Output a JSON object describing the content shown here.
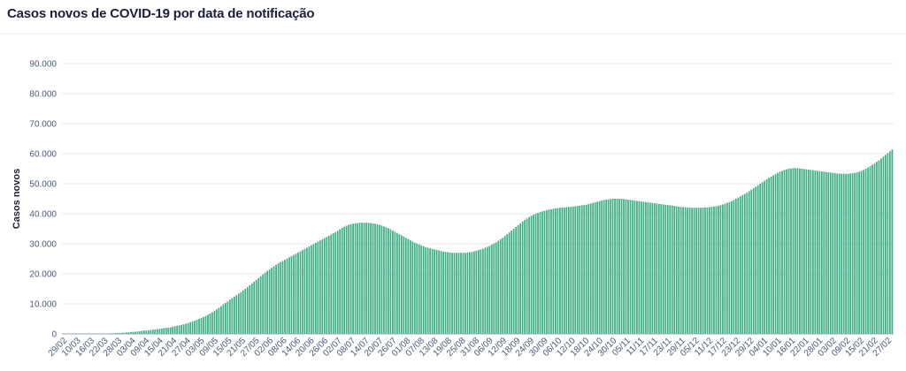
{
  "header": {
    "title": "Casos novos de COVID-19 por data de notificação"
  },
  "colors": {
    "bar": "#3daf84",
    "grid": "#e6eaf0",
    "axis": "#9aa5b5",
    "text": "#4a5a75"
  },
  "chart_data": {
    "type": "bar",
    "title": "Casos novos de COVID-19 por data de notificação",
    "xlabel": "",
    "ylabel": "Casos novos",
    "ylim": [
      0,
      90000
    ],
    "yticks": [
      "0",
      "10.000",
      "20.000",
      "30.000",
      "40.000",
      "50.000",
      "60.000",
      "70.000",
      "80.000",
      "90.000"
    ],
    "grid": true,
    "first_date": "29/02",
    "xtick_labels": [
      "29/02",
      "10/03",
      "16/03",
      "22/03",
      "28/03",
      "03/04",
      "09/04",
      "15/04",
      "21/04",
      "27/04",
      "03/05",
      "09/05",
      "15/05",
      "21/05",
      "27/05",
      "02/06",
      "08/06",
      "14/06",
      "20/06",
      "26/06",
      "02/07",
      "08/07",
      "14/07",
      "20/07",
      "26/07",
      "01/08",
      "07/08",
      "13/08",
      "19/08",
      "25/08",
      "31/08",
      "06/09",
      "12/09",
      "18/09",
      "24/09",
      "30/09",
      "06/10",
      "12/10",
      "18/10",
      "24/10",
      "30/10",
      "05/11",
      "11/11",
      "17/11",
      "23/11",
      "29/11",
      "05/12",
      "11/12",
      "17/12",
      "23/12",
      "29/12",
      "04/01",
      "10/01",
      "16/01",
      "22/01",
      "28/01",
      "03/02",
      "09/02",
      "15/02",
      "21/02",
      "27/02"
    ],
    "values": [
      0,
      0,
      0,
      0,
      0,
      0,
      0,
      0,
      0,
      0,
      0,
      0,
      0,
      0,
      0,
      0,
      0,
      0,
      0,
      0,
      100,
      100,
      200,
      200,
      300,
      300,
      300,
      400,
      400,
      500,
      500,
      600,
      700,
      700,
      800,
      900,
      1000,
      1100,
      1100,
      1200,
      1300,
      1400,
      1500,
      1600,
      1700,
      1800,
      1900,
      2000,
      2100,
      2200,
      2400,
      2500,
      2700,
      2800,
      3000,
      3200,
      3400,
      3600,
      3900,
      4100,
      4400,
      4700,
      5000,
      5300,
      5600,
      6000,
      6400,
      6800,
      7200,
      7700,
      8200,
      8700,
      9200,
      9800,
      10300,
      10800,
      11400,
      11900,
      12400,
      12900,
      13400,
      13900,
      14500,
      15000,
      15600,
      16200,
      16800,
      17400,
      18000,
      18600,
      19200,
      19800,
      20400,
      21000,
      21500,
      22000,
      22500,
      23000,
      23500,
      23900,
      24300,
      24700,
      25100,
      25500,
      25900,
      26300,
      26700,
      27100,
      27500,
      27900,
      28300,
      28700,
      29100,
      29500,
      29900,
      30300,
      30700,
      31100,
      31500,
      31900,
      32300,
      32700,
      33100,
      33500,
      33900,
      34300,
      34800,
      35300,
      35700,
      36000,
      36300,
      36500,
      36700,
      36800,
      36900,
      37000,
      37000,
      37000,
      37000,
      37000,
      36900,
      36800,
      36700,
      36500,
      36300,
      36100,
      35800,
      35500,
      35200,
      34800,
      34400,
      34000,
      33600,
      33200,
      32800,
      32400,
      32000,
      31600,
      31200,
      30800,
      30400,
      30100,
      29800,
      29500,
      29200,
      28900,
      28700,
      28500,
      28300,
      28100,
      28000,
      27800,
      27600,
      27400,
      27300,
      27200,
      27100,
      27000,
      27000,
      27000,
      27000,
      27000,
      27000,
      27000,
      27100,
      27200,
      27300,
      27500,
      27700,
      27900,
      28100,
      28400,
      28700,
      29000,
      29300,
      29700,
      30100,
      30500,
      31000,
      31500,
      32000,
      32600,
      33200,
      33800,
      34400,
      35000,
      35600,
      36200,
      36800,
      37400,
      37900,
      38400,
      38900,
      39300,
      39700,
      40000,
      40300,
      40600,
      40800,
      41000,
      41200,
      41400,
      41500,
      41700,
      41800,
      41900,
      42000,
      42100,
      42100,
      42200,
      42200,
      42300,
      42400,
      42500,
      42600,
      42700,
      42800,
      42900,
      43000,
      43200,
      43400,
      43600,
      43800,
      44000,
      44200,
      44400,
      44600,
      44700,
      44800,
      44900,
      45000,
      45000,
      45000,
      45000,
      45000,
      44900,
      44800,
      44700,
      44600,
      44500,
      44400,
      44300,
      44200,
      44100,
      44000,
      43900,
      43800,
      43700,
      43600,
      43500,
      43400,
      43300,
      43200,
      43100,
      43000,
      42900,
      42800,
      42700,
      42600,
      42500,
      42400,
      42300,
      42200,
      42200,
      42100,
      42100,
      42000,
      42000,
      42000,
      42000,
      42000,
      42000,
      42100,
      42100,
      42200,
      42300,
      42400,
      42500,
      42700,
      42900,
      43100,
      43300,
      43600,
      43900,
      44200,
      44600,
      45000,
      45400,
      45800,
      46200,
      46600,
      47000,
      47500,
      48000,
      48500,
      49000,
      49500,
      50000,
      50500,
      51000,
      51500,
      52000,
      52400,
      52800,
      53200,
      53600,
      54000,
      54300,
      54600,
      54800,
      55000,
      55100,
      55200,
      55200,
      55200,
      55100,
      55000,
      54900,
      54800,
      54700,
      54600,
      54500,
      54400,
      54300,
      54200,
      54100,
      54000,
      53900,
      53800,
      53700,
      53600,
      53500,
      53400,
      53400,
      53300,
      53300,
      53300,
      53300,
      53400,
      53500,
      53600,
      53800,
      54000,
      54300,
      54600,
      55000,
      55400,
      55800,
      56300,
      56800,
      57300,
      57800,
      58400,
      59000,
      59600,
      60200,
      60800,
      61400
    ]
  }
}
